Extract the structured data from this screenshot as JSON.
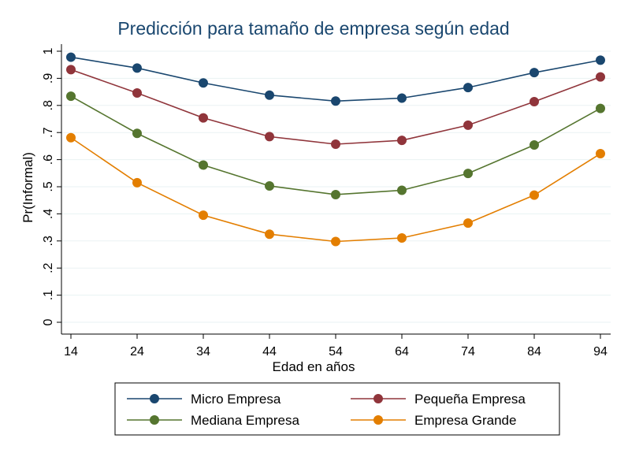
{
  "chart_data": {
    "type": "line",
    "title": "Predicción para tamaño de empresa según edad",
    "xlabel": "Edad en años",
    "ylabel": "Pr(Informal)",
    "x": [
      14,
      24,
      34,
      44,
      54,
      64,
      74,
      84,
      94
    ],
    "x_ticks": [
      "14",
      "24",
      "34",
      "44",
      "54",
      "64",
      "74",
      "84",
      "94"
    ],
    "y_ticks": [
      "0",
      ".1",
      ".2",
      ".3",
      ".4",
      ".5",
      ".6",
      ".7",
      ".8",
      ".9",
      "1"
    ],
    "ylim": [
      0,
      1
    ],
    "grid": true,
    "legend_position": "bottom",
    "series": [
      {
        "name": "Micro Empresa",
        "color": "#1a476f",
        "values": [
          0.978,
          0.938,
          0.883,
          0.838,
          0.816,
          0.827,
          0.866,
          0.921,
          0.967
        ]
      },
      {
        "name": "Pequeña Empresa",
        "color": "#90353b",
        "values": [
          0.932,
          0.846,
          0.754,
          0.685,
          0.657,
          0.671,
          0.727,
          0.814,
          0.905
        ]
      },
      {
        "name": "Mediana Empresa",
        "color": "#55752f",
        "values": [
          0.834,
          0.697,
          0.58,
          0.503,
          0.471,
          0.487,
          0.549,
          0.654,
          0.789
        ]
      },
      {
        "name": "Empresa Grande",
        "color": "#e37e00",
        "values": [
          0.681,
          0.515,
          0.395,
          0.325,
          0.298,
          0.311,
          0.366,
          0.469,
          0.622
        ]
      }
    ]
  }
}
